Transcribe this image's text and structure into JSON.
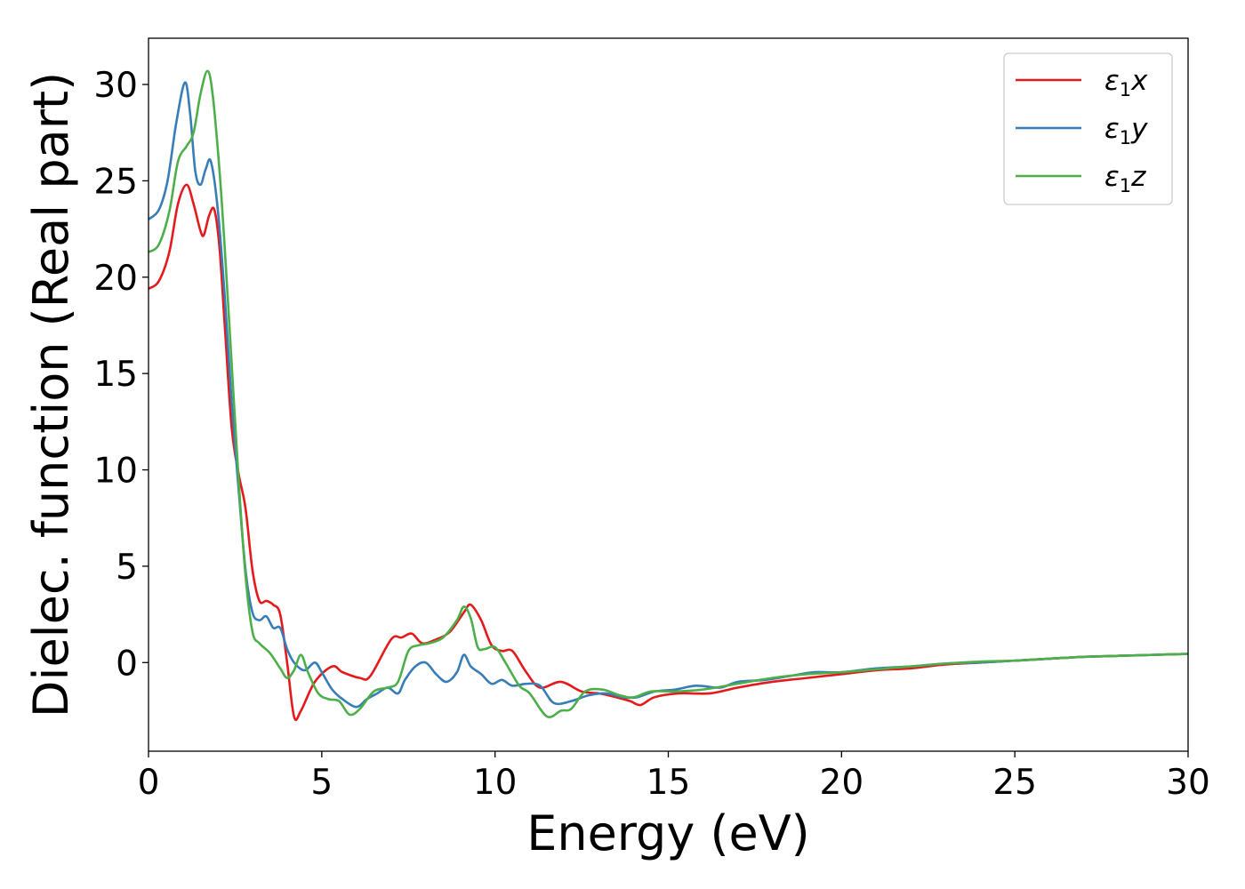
{
  "chart_data": {
    "type": "line",
    "title": "",
    "xlabel": "Energy (eV)",
    "ylabel": "Dielec. function (Real part)",
    "xlim": [
      0,
      30
    ],
    "ylim": [
      -4.6,
      32.4
    ],
    "xticks": [
      0,
      5,
      10,
      15,
      20,
      25,
      30
    ],
    "yticks": [
      0,
      5,
      10,
      15,
      20,
      25,
      30
    ],
    "grid": false,
    "legend_position": "top-right",
    "series": [
      {
        "name": "ε₁x",
        "legend_base": "ε",
        "legend_sub": "1",
        "legend_var": "x",
        "color": "#e41a1c",
        "points": [
          [
            0,
            19.4
          ],
          [
            0.3,
            19.8
          ],
          [
            0.6,
            21.3
          ],
          [
            0.85,
            23.8
          ],
          [
            1.1,
            24.8
          ],
          [
            1.3,
            23.8
          ],
          [
            1.5,
            22.4
          ],
          [
            1.6,
            22.2
          ],
          [
            1.75,
            23.2
          ],
          [
            1.9,
            23.5
          ],
          [
            2.05,
            21.5
          ],
          [
            2.2,
            17.5
          ],
          [
            2.4,
            12.2
          ],
          [
            2.6,
            9.8
          ],
          [
            2.8,
            8.0
          ],
          [
            3.0,
            4.8
          ],
          [
            3.2,
            3.2
          ],
          [
            3.4,
            3.2
          ],
          [
            3.6,
            3.0
          ],
          [
            3.8,
            2.5
          ],
          [
            4.0,
            0.0
          ],
          [
            4.2,
            -2.8
          ],
          [
            4.4,
            -2.5
          ],
          [
            4.8,
            -1.0
          ],
          [
            5.3,
            -0.2
          ],
          [
            5.6,
            -0.5
          ],
          [
            6.1,
            -0.8
          ],
          [
            6.4,
            -0.7
          ],
          [
            7.0,
            1.2
          ],
          [
            7.3,
            1.3
          ],
          [
            7.6,
            1.5
          ],
          [
            7.9,
            1.0
          ],
          [
            8.3,
            1.2
          ],
          [
            8.7,
            1.6
          ],
          [
            9.1,
            2.6
          ],
          [
            9.3,
            3.0
          ],
          [
            9.6,
            2.2
          ],
          [
            9.9,
            0.9
          ],
          [
            10.2,
            0.6
          ],
          [
            10.5,
            0.6
          ],
          [
            10.9,
            -0.5
          ],
          [
            11.3,
            -1.3
          ],
          [
            11.9,
            -1.0
          ],
          [
            12.5,
            -1.5
          ],
          [
            13.0,
            -1.6
          ],
          [
            13.5,
            -1.8
          ],
          [
            13.9,
            -2.0
          ],
          [
            14.2,
            -2.2
          ],
          [
            14.6,
            -1.8
          ],
          [
            15.3,
            -1.6
          ],
          [
            16.2,
            -1.6
          ],
          [
            17.0,
            -1.3
          ],
          [
            18.0,
            -1.0
          ],
          [
            19.0,
            -0.8
          ],
          [
            20.0,
            -0.6
          ],
          [
            21.0,
            -0.4
          ],
          [
            22.0,
            -0.3
          ],
          [
            23.0,
            -0.1
          ],
          [
            24.0,
            0.0
          ],
          [
            25.0,
            0.1
          ],
          [
            26.0,
            0.2
          ],
          [
            27.0,
            0.3
          ],
          [
            28.0,
            0.35
          ],
          [
            29.0,
            0.4
          ],
          [
            30.0,
            0.45
          ]
        ]
      },
      {
        "name": "ε₁y",
        "legend_base": "ε",
        "legend_sub": "1",
        "legend_var": "y",
        "color": "#377eb8",
        "points": [
          [
            0,
            23.0
          ],
          [
            0.3,
            23.5
          ],
          [
            0.55,
            25.0
          ],
          [
            0.8,
            28.0
          ],
          [
            1.05,
            30.1
          ],
          [
            1.2,
            28.5
          ],
          [
            1.35,
            25.5
          ],
          [
            1.5,
            24.8
          ],
          [
            1.65,
            25.6
          ],
          [
            1.8,
            26.0
          ],
          [
            2.0,
            23.5
          ],
          [
            2.2,
            19.0
          ],
          [
            2.4,
            13.5
          ],
          [
            2.6,
            9.0
          ],
          [
            2.8,
            4.8
          ],
          [
            3.0,
            2.6
          ],
          [
            3.2,
            2.2
          ],
          [
            3.4,
            2.4
          ],
          [
            3.6,
            1.8
          ],
          [
            3.8,
            1.8
          ],
          [
            4.0,
            0.7
          ],
          [
            4.2,
            0.0
          ],
          [
            4.5,
            -0.4
          ],
          [
            4.8,
            0.0
          ],
          [
            5.0,
            -0.5
          ],
          [
            5.3,
            -1.4
          ],
          [
            5.6,
            -1.9
          ],
          [
            6.0,
            -2.3
          ],
          [
            6.3,
            -1.9
          ],
          [
            6.6,
            -1.6
          ],
          [
            6.9,
            -1.3
          ],
          [
            7.2,
            -1.6
          ],
          [
            7.4,
            -0.9
          ],
          [
            7.7,
            -0.2
          ],
          [
            8.0,
            0.0
          ],
          [
            8.3,
            -0.6
          ],
          [
            8.6,
            -1.0
          ],
          [
            8.9,
            -0.5
          ],
          [
            9.1,
            0.4
          ],
          [
            9.3,
            -0.2
          ],
          [
            9.6,
            -0.6
          ],
          [
            9.9,
            -1.1
          ],
          [
            10.2,
            -0.9
          ],
          [
            10.5,
            -1.2
          ],
          [
            10.9,
            -1.1
          ],
          [
            11.3,
            -1.2
          ],
          [
            11.7,
            -2.1
          ],
          [
            12.2,
            -2.0
          ],
          [
            12.7,
            -1.7
          ],
          [
            13.2,
            -1.6
          ],
          [
            13.7,
            -1.8
          ],
          [
            14.1,
            -1.8
          ],
          [
            14.6,
            -1.5
          ],
          [
            15.2,
            -1.4
          ],
          [
            15.8,
            -1.2
          ],
          [
            16.5,
            -1.3
          ],
          [
            17.0,
            -1.0
          ],
          [
            17.8,
            -0.9
          ],
          [
            18.5,
            -0.7
          ],
          [
            19.2,
            -0.5
          ],
          [
            20.0,
            -0.5
          ],
          [
            21.0,
            -0.3
          ],
          [
            22.0,
            -0.2
          ],
          [
            23.0,
            -0.05
          ],
          [
            24.0,
            0.0
          ],
          [
            25.0,
            0.1
          ],
          [
            26.0,
            0.2
          ],
          [
            27.0,
            0.3
          ],
          [
            28.0,
            0.35
          ],
          [
            29.0,
            0.4
          ],
          [
            30.0,
            0.45
          ]
        ]
      },
      {
        "name": "ε₁z",
        "legend_base": "ε",
        "legend_sub": "1",
        "legend_var": "z",
        "color": "#4daf4a",
        "points": [
          [
            0,
            21.3
          ],
          [
            0.3,
            21.7
          ],
          [
            0.6,
            23.4
          ],
          [
            0.85,
            26.0
          ],
          [
            1.1,
            26.8
          ],
          [
            1.3,
            27.5
          ],
          [
            1.5,
            29.5
          ],
          [
            1.7,
            30.7
          ],
          [
            1.85,
            29.5
          ],
          [
            2.05,
            25.5
          ],
          [
            2.2,
            21.5
          ],
          [
            2.4,
            15.5
          ],
          [
            2.6,
            9.5
          ],
          [
            2.8,
            4.5
          ],
          [
            3.0,
            1.6
          ],
          [
            3.2,
            1.0
          ],
          [
            3.5,
            0.5
          ],
          [
            3.8,
            -0.3
          ],
          [
            4.0,
            -0.8
          ],
          [
            4.2,
            -0.4
          ],
          [
            4.4,
            0.4
          ],
          [
            4.6,
            -0.5
          ],
          [
            4.9,
            -1.6
          ],
          [
            5.2,
            -1.9
          ],
          [
            5.5,
            -2.0
          ],
          [
            5.8,
            -2.7
          ],
          [
            6.1,
            -2.4
          ],
          [
            6.5,
            -1.5
          ],
          [
            6.9,
            -1.3
          ],
          [
            7.2,
            -1.0
          ],
          [
            7.5,
            0.6
          ],
          [
            7.8,
            0.9
          ],
          [
            8.1,
            1.0
          ],
          [
            8.5,
            1.3
          ],
          [
            8.9,
            2.2
          ],
          [
            9.1,
            2.9
          ],
          [
            9.3,
            2.3
          ],
          [
            9.5,
            0.8
          ],
          [
            9.7,
            0.7
          ],
          [
            10.0,
            0.8
          ],
          [
            10.3,
            0.0
          ],
          [
            10.7,
            -1.2
          ],
          [
            11.0,
            -1.6
          ],
          [
            11.5,
            -2.8
          ],
          [
            11.9,
            -2.5
          ],
          [
            12.2,
            -2.4
          ],
          [
            12.6,
            -1.5
          ],
          [
            13.1,
            -1.4
          ],
          [
            13.6,
            -1.7
          ],
          [
            14.0,
            -1.8
          ],
          [
            14.5,
            -1.5
          ],
          [
            15.2,
            -1.5
          ],
          [
            16.0,
            -1.4
          ],
          [
            17.0,
            -1.1
          ],
          [
            18.0,
            -0.8
          ],
          [
            19.0,
            -0.6
          ],
          [
            20.0,
            -0.5
          ],
          [
            21.0,
            -0.35
          ],
          [
            22.0,
            -0.2
          ],
          [
            23.0,
            -0.05
          ],
          [
            24.0,
            0.05
          ],
          [
            25.0,
            0.1
          ],
          [
            26.0,
            0.2
          ],
          [
            27.0,
            0.3
          ],
          [
            28.0,
            0.35
          ],
          [
            29.0,
            0.4
          ],
          [
            30.0,
            0.45
          ]
        ]
      }
    ]
  }
}
